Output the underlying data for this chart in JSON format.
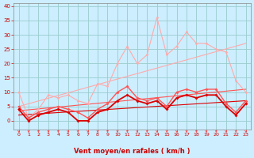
{
  "xlabel": "Vent moyen/en rafales ( km/h )",
  "xlim": [
    -0.5,
    23.5
  ],
  "ylim": [
    -3,
    41
  ],
  "xticks": [
    0,
    1,
    2,
    3,
    4,
    5,
    6,
    7,
    8,
    9,
    10,
    11,
    12,
    13,
    14,
    15,
    16,
    17,
    18,
    19,
    20,
    21,
    22,
    23
  ],
  "yticks": [
    0,
    5,
    10,
    15,
    20,
    25,
    30,
    35,
    40
  ],
  "background_color": "#cceeff",
  "grid_color": "#99cccc",
  "line1_color": "#ffaaaa",
  "line2_color": "#ff5555",
  "line3_color": "#dd0000",
  "line1_x": [
    0,
    1,
    2,
    3,
    4,
    5,
    6,
    7,
    8,
    9,
    10,
    11,
    12,
    13,
    14,
    15,
    16,
    17,
    18,
    19,
    20,
    21,
    22,
    23
  ],
  "line1_y": [
    10,
    1,
    4,
    9,
    8,
    9,
    7,
    6,
    13,
    12,
    20,
    26,
    20,
    23,
    36,
    23,
    26,
    31,
    27,
    27,
    25,
    24,
    14,
    10
  ],
  "line2_x": [
    0,
    1,
    2,
    3,
    4,
    5,
    6,
    7,
    8,
    9,
    10,
    11,
    12,
    13,
    14,
    15,
    16,
    17,
    18,
    19,
    20,
    21,
    22,
    23
  ],
  "line2_y": [
    5,
    1,
    3,
    4,
    5,
    4,
    3,
    1,
    4,
    6,
    10,
    12,
    8,
    7,
    8,
    5,
    10,
    11,
    10,
    11,
    11,
    6,
    3,
    7
  ],
  "line3_x": [
    0,
    1,
    2,
    3,
    4,
    5,
    6,
    7,
    8,
    9,
    10,
    11,
    12,
    13,
    14,
    15,
    16,
    17,
    18,
    19,
    20,
    21,
    22,
    23
  ],
  "line3_y": [
    4,
    0,
    2,
    3,
    4,
    3,
    0,
    0,
    3,
    4,
    7,
    9,
    7,
    6,
    7,
    4,
    8,
    9,
    8,
    9,
    9,
    5,
    2,
    6
  ],
  "trend1_x": [
    0,
    23
  ],
  "trend1_y": [
    5,
    27
  ],
  "trend2_x": [
    0,
    23
  ],
  "trend2_y": [
    3.5,
    11
  ],
  "trend3_x": [
    0,
    23
  ],
  "trend3_y": [
    2,
    7
  ],
  "tick_color": "#cc0000",
  "xlabel_color": "#cc0000",
  "xlabel_fontsize": 6,
  "tick_fontsize_x": 4.5,
  "tick_fontsize_y": 5
}
